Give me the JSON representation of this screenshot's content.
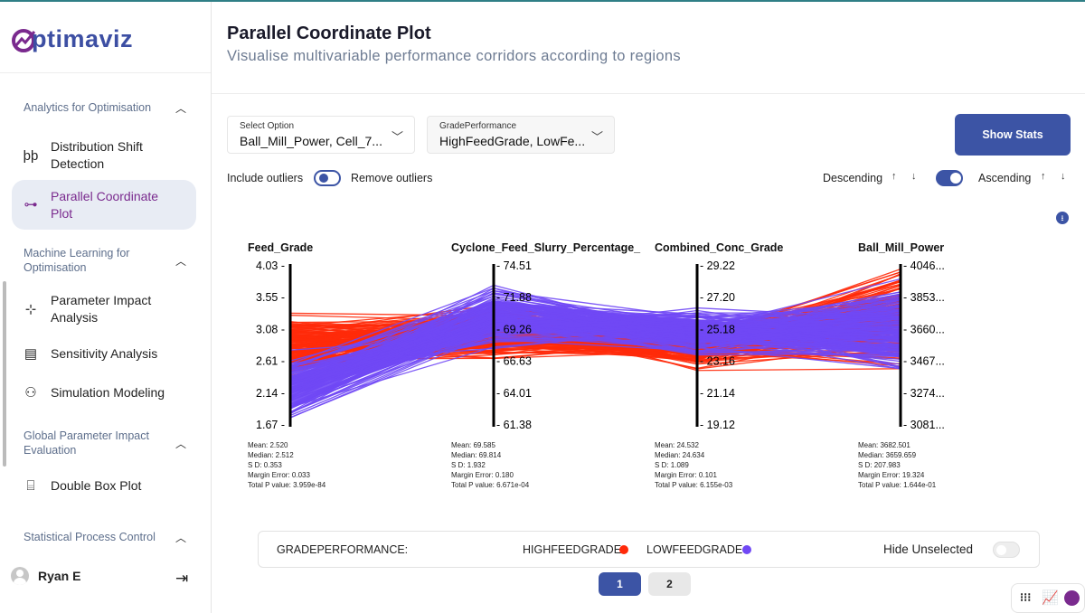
{
  "app": {
    "logo": "optimaviz"
  },
  "sidebar": {
    "sections": [
      {
        "label": "Analytics for Optimisation"
      },
      {
        "label": "Machine Learning for Optimisation"
      },
      {
        "label": "Global Parameter Impact Evaluation"
      },
      {
        "label": "Statistical Process Control"
      }
    ],
    "items": [
      {
        "label": "Distribution Shift Detection",
        "icon": "distribution-icon"
      },
      {
        "label": "Parallel Coordinate Plot",
        "icon": "parallel-plot-icon",
        "active": true
      },
      {
        "label": "Parameter Impact Analysis",
        "icon": "parameter-impact-icon"
      },
      {
        "label": "Sensitivity Analysis",
        "icon": "sensitivity-icon"
      },
      {
        "label": "Simulation Modeling",
        "icon": "simulation-icon"
      },
      {
        "label": "Double Box Plot",
        "icon": "box-plot-icon"
      }
    ],
    "user": {
      "name": "Ryan E"
    }
  },
  "header": {
    "title": "Parallel Coordinate Plot",
    "subtitle": "Visualise multivariable performance corridors according to regions"
  },
  "controls": {
    "select_option": {
      "label": "Select Option",
      "value": "Ball_Mill_Power, Cell_7..."
    },
    "grade_performance": {
      "label": "GradePerformance",
      "value": "HighFeedGrade, LowFe..."
    },
    "show_stats": "Show Stats",
    "include_outliers": "Include outliers",
    "remove_outliers": "Remove outliers",
    "descending": "Descending",
    "ascending": "Ascending",
    "accent": "#3c54a5"
  },
  "chart_data": {
    "type": "parallel-coordinates",
    "axes": [
      {
        "name": "Feed_Grade",
        "ticks": [
          "4.03",
          "3.55",
          "3.08",
          "2.61",
          "2.14",
          "1.67"
        ],
        "range": [
          1.67,
          4.03
        ],
        "stats": {
          "mean": "Mean: 2.520",
          "median": "Median: 2.512",
          "sd": "S D: 0.353",
          "margin": "Margin Error: 0.033",
          "p": "Total P value: 3.959e-84"
        }
      },
      {
        "name": "Cyclone_Feed_Slurry_Percentage_",
        "ticks": [
          "74.51",
          "71.88",
          "69.26",
          "66.63",
          "64.01",
          "61.38"
        ],
        "range": [
          61.38,
          74.51
        ],
        "stats": {
          "mean": "Mean: 69.585",
          "median": "Median: 69.814",
          "sd": "S D: 1.932",
          "margin": "Margin Error: 0.180",
          "p": "Total P value: 6.671e-04"
        }
      },
      {
        "name": "Combined_Conc_Grade",
        "ticks": [
          "29.22",
          "27.20",
          "25.18",
          "23.16",
          "21.14",
          "19.12"
        ],
        "range": [
          19.12,
          29.22
        ],
        "stats": {
          "mean": "Mean: 24.532",
          "median": "Median: 24.634",
          "sd": "S D: 1.089",
          "margin": "Margin Error: 0.101",
          "p": "Total P value: 6.155e-03"
        }
      },
      {
        "name": "Ball_Mill_Power",
        "ticks": [
          "4046...",
          "3853...",
          "3660...",
          "3467...",
          "3274...",
          "3081..."
        ],
        "range": [
          3081,
          4046
        ],
        "stats": {
          "mean": "Mean: 3682.501",
          "median": "Median: 3659.659",
          "sd": "S D: 207.983",
          "margin": "Margin Error: 19.324",
          "p": "Total P value: 1.644e-01"
        }
      }
    ],
    "series": [
      {
        "name": "HIGHFEEDGRADE",
        "color": "#ff2a0a"
      },
      {
        "name": "LOWFEEDGRADE",
        "color": "#7048f5"
      }
    ]
  },
  "legend": {
    "title": "GRADEPERFORMANCE:",
    "hide_unselected": "Hide Unselected"
  },
  "pagination": {
    "pages": [
      "1",
      "2"
    ],
    "current": "1"
  }
}
